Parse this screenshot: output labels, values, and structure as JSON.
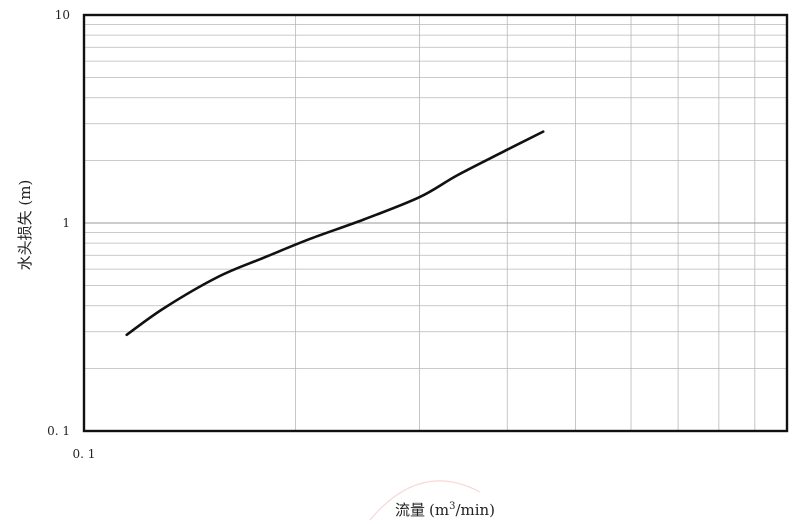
{
  "chart_data": {
    "type": "line",
    "title": "",
    "xlabel": "流量",
    "xlabel_unit_prefix": "(m",
    "xlabel_unit_sup": "3",
    "xlabel_unit_suffix": "/min)",
    "ylabel": "水头损失 (m)",
    "x_scale": "log",
    "y_scale": "log",
    "xlim": [
      0.1,
      1
    ],
    "ylim": [
      0.1,
      10
    ],
    "x_tick_labels": [
      {
        "value": 0.1,
        "label": "0. 1"
      }
    ],
    "y_tick_labels": [
      {
        "value": 10,
        "label": "10"
      },
      {
        "value": 1,
        "label": "1"
      },
      {
        "value": 0.1,
        "label": "0. 1"
      }
    ],
    "grid": true,
    "legend": "none",
    "series": [
      {
        "x": [
          0.115,
          0.13,
          0.155,
          0.18,
          0.21,
          0.25,
          0.3,
          0.34,
          0.4,
          0.45
        ],
        "y": [
          0.29,
          0.39,
          0.55,
          0.68,
          0.84,
          1.04,
          1.33,
          1.7,
          2.25,
          2.75
        ],
        "color": "#111111"
      }
    ]
  }
}
